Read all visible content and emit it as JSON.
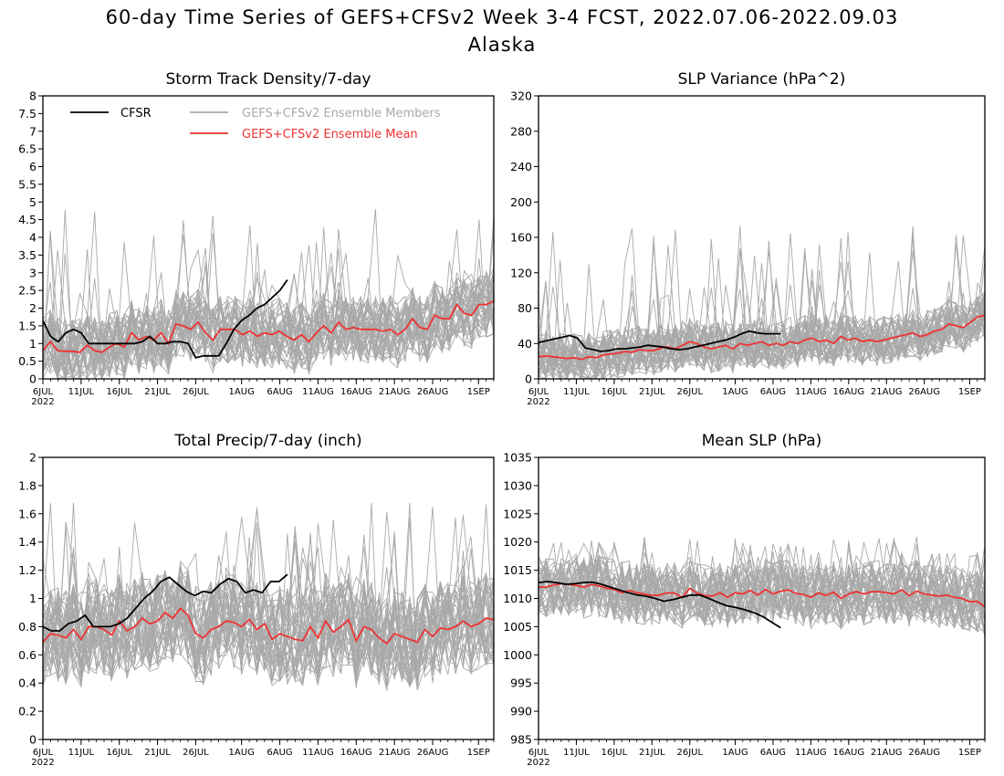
{
  "title": {
    "line1": "60-day Time Series of GEFS+CFSv2 Week 3-4 FCST, 2022.07.06-2022.09.03",
    "line2": "Alaska"
  },
  "legend": {
    "cfsr": "CFSR",
    "members": "GEFS+CFSv2 Ensemble Members",
    "mean": "GEFS+CFSv2 Ensemble Mean"
  },
  "colors": {
    "cfsr": "#000000",
    "members": "#a9a9a9",
    "mean": "#ee3333",
    "axis": "#000000"
  },
  "chart_data": [
    {
      "type": "line",
      "title": "Storm Track Density/7-day",
      "ylim": [
        0,
        8
      ],
      "yticks": [
        "0",
        "0.5",
        "1",
        "1.5",
        "2",
        "2.5",
        "3",
        "3.5",
        "4",
        "4.5",
        "5",
        "5.5",
        "6",
        "6.5",
        "7",
        "7.5",
        "8"
      ],
      "x_day_range": [
        1,
        60
      ],
      "xtick_labels": [
        "6JUL",
        "11JUL",
        "16JUL",
        "21JUL",
        "26JUL",
        "1AUG",
        "6AUG",
        "11AUG",
        "16AUG",
        "21AUG",
        "26AUG",
        "1SEP"
      ],
      "xtick_sub": "2022",
      "legend_position": "top",
      "cfsr": [
        1.65,
        1.2,
        1.05,
        1.3,
        1.4,
        1.3,
        1.0,
        1.0,
        1.0,
        1.0,
        1.0,
        1.0,
        1.0,
        1.05,
        1.2,
        1.0,
        1.0,
        1.05,
        1.05,
        1.0,
        0.6,
        0.65,
        0.65,
        0.65,
        1.0,
        1.4,
        1.65,
        1.8,
        2.0,
        2.1,
        2.3,
        2.5,
        2.8
      ],
      "ensemble_mean": [
        0.8,
        1.05,
        0.8,
        0.78,
        0.78,
        0.75,
        0.95,
        0.8,
        0.75,
        0.9,
        1.0,
        0.9,
        1.3,
        1.1,
        1.2,
        1.1,
        1.3,
        1.0,
        1.55,
        1.5,
        1.4,
        1.6,
        1.3,
        1.1,
        1.4,
        1.4,
        1.4,
        1.25,
        1.35,
        1.2,
        1.3,
        1.25,
        1.35,
        1.2,
        1.1,
        1.25,
        1.05,
        1.3,
        1.5,
        1.3,
        1.6,
        1.4,
        1.45,
        1.4,
        1.4,
        1.4,
        1.35,
        1.4,
        1.25,
        1.4,
        1.7,
        1.45,
        1.4,
        1.8,
        1.7,
        1.7,
        2.1,
        1.85,
        1.8,
        2.1,
        2.1,
        2.2
      ],
      "members_band": {
        "low": 0.15,
        "high": 2.4,
        "peak": 4.9
      },
      "ensemble_members_count": 40
    },
    {
      "type": "line",
      "title": "SLP Variance (hPa^2)",
      "ylim": [
        0,
        320
      ],
      "yticks": [
        "0",
        "40",
        "80",
        "120",
        "160",
        "200",
        "240",
        "280",
        "320"
      ],
      "x_day_range": [
        1,
        60
      ],
      "xtick_labels": [
        "6JUL",
        "11JUL",
        "16JUL",
        "21JUL",
        "26JUL",
        "1AUG",
        "6AUG",
        "11AUG",
        "16AUG",
        "21AUG",
        "26AUG",
        "1SEP"
      ],
      "xtick_sub": "2022",
      "cfsr": [
        41,
        43,
        45,
        47,
        49,
        46,
        35,
        33,
        31,
        32,
        34,
        34,
        35,
        36,
        38,
        37,
        36,
        34,
        33,
        34,
        36,
        38,
        40,
        42,
        44,
        47,
        51,
        54,
        52,
        51,
        51,
        51
      ],
      "ensemble_mean": [
        25,
        26,
        25,
        24,
        23,
        24,
        22,
        25,
        24,
        27,
        28,
        29,
        31,
        30,
        33,
        32,
        32,
        35,
        36,
        34,
        38,
        42,
        40,
        36,
        34,
        36,
        38,
        34,
        40,
        38,
        40,
        42,
        38,
        40,
        38,
        42,
        40,
        44,
        46,
        42,
        44,
        40,
        48,
        44,
        46,
        42,
        44,
        42,
        44,
        46,
        48,
        50,
        52,
        48,
        50,
        54,
        56,
        62,
        60,
        58,
        64,
        70,
        72
      ],
      "members_band": {
        "low": 15,
        "high": 80,
        "peak": 175
      },
      "ensemble_members_count": 40
    },
    {
      "type": "line",
      "title": "Total Precip/7-day (inch)",
      "ylim": [
        0,
        2
      ],
      "yticks": [
        "0",
        "0.2",
        "0.4",
        "0.6",
        "0.8",
        "1",
        "1.2",
        "1.4",
        "1.6",
        "1.8",
        "2"
      ],
      "x_day_range": [
        1,
        60
      ],
      "xtick_labels": [
        "6JUL",
        "11JUL",
        "16JUL",
        "21JUL",
        "26JUL",
        "1AUG",
        "6AUG",
        "11AUG",
        "16AUG",
        "21AUG",
        "26AUG",
        "1SEP"
      ],
      "xtick_sub": "2022",
      "cfsr": [
        0.8,
        0.77,
        0.77,
        0.82,
        0.84,
        0.88,
        0.8,
        0.8,
        0.8,
        0.82,
        0.86,
        0.93,
        1.0,
        1.05,
        1.12,
        1.15,
        1.1,
        1.05,
        1.02,
        1.05,
        1.04,
        1.1,
        1.14,
        1.12,
        1.04,
        1.06,
        1.04,
        1.12,
        1.12,
        1.17
      ],
      "ensemble_mean": [
        0.69,
        0.75,
        0.74,
        0.72,
        0.78,
        0.71,
        0.8,
        0.8,
        0.78,
        0.74,
        0.84,
        0.77,
        0.8,
        0.86,
        0.82,
        0.84,
        0.9,
        0.86,
        0.93,
        0.88,
        0.75,
        0.72,
        0.78,
        0.8,
        0.84,
        0.83,
        0.8,
        0.85,
        0.78,
        0.82,
        0.71,
        0.75,
        0.73,
        0.71,
        0.7,
        0.8,
        0.72,
        0.84,
        0.76,
        0.8,
        0.85,
        0.7,
        0.8,
        0.78,
        0.72,
        0.68,
        0.75,
        0.73,
        0.71,
        0.69,
        0.78,
        0.73,
        0.79,
        0.78,
        0.8,
        0.84,
        0.8,
        0.82,
        0.86,
        0.85
      ],
      "members_band": {
        "low": 0.35,
        "high": 1.15,
        "peak": 1.68
      },
      "ensemble_members_count": 40
    },
    {
      "type": "line",
      "title": "Mean SLP (hPa)",
      "ylim": [
        985,
        1035
      ],
      "yticks": [
        "985",
        "990",
        "995",
        "1000",
        "1005",
        "1010",
        "1015",
        "1020",
        "1025",
        "1030",
        "1035"
      ],
      "x_day_range": [
        1,
        60
      ],
      "xtick_labels": [
        "6JUL",
        "11JUL",
        "16JUL",
        "21JUL",
        "26JUL",
        "1AUG",
        "6AUG",
        "11AUG",
        "16AUG",
        "21AUG",
        "26AUG",
        "1SEP"
      ],
      "xtick_sub": "2022",
      "cfsr": [
        1012.8,
        1013.0,
        1012.8,
        1012.5,
        1012.6,
        1012.8,
        1012.9,
        1012.5,
        1012.0,
        1011.5,
        1011.0,
        1010.6,
        1010.4,
        1010.0,
        1009.5,
        1009.8,
        1010.2,
        1010.6,
        1010.6,
        1010.0,
        1009.3,
        1008.7,
        1008.4,
        1008.0,
        1007.5,
        1006.8,
        1005.8,
        1004.8
      ],
      "ensemble_mean": [
        1012.0,
        1012.0,
        1012.4,
        1012.6,
        1012.5,
        1012.3,
        1012.0,
        1012.5,
        1012.2,
        1011.8,
        1011.6,
        1011.0,
        1011.4,
        1011.0,
        1010.8,
        1010.5,
        1010.6,
        1011.0,
        1010.9,
        1010.2,
        1011.8,
        1010.9,
        1010.5,
        1010.4,
        1011.0,
        1010.2,
        1011.0,
        1010.8,
        1011.4,
        1010.6,
        1011.6,
        1010.8,
        1011.3,
        1011.5,
        1010.9,
        1010.7,
        1010.2,
        1011.0,
        1010.5,
        1011.1,
        1010.0,
        1010.8,
        1011.2,
        1010.8,
        1011.2,
        1011.2,
        1011.0,
        1010.8,
        1011.5,
        1010.5,
        1011.3,
        1010.8,
        1010.6,
        1010.4,
        1010.6,
        1010.2,
        1010.0,
        1009.4,
        1009.5,
        1008.5
      ],
      "members_band": {
        "low": 1004,
        "high": 1017,
        "peak": 1021
      },
      "ensemble_members_count": 40
    }
  ]
}
